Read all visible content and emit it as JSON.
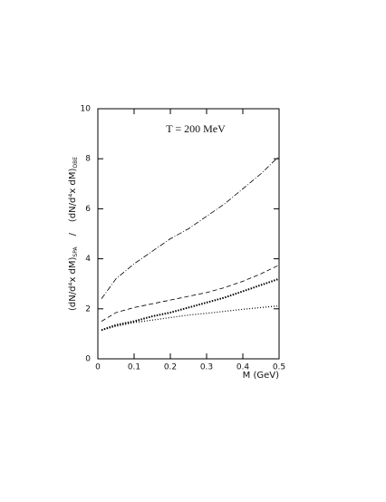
{
  "chart_data": {
    "type": "line",
    "annotation": "T = 200 MeV",
    "x_label": "M (GeV)",
    "y_label": {
      "numerator": "(dN/d⁴x dM)",
      "numerator_sub": "SPA",
      "divider": "/",
      "denominator": "(dN/d⁴x dM)",
      "denominator_sub": "OBE"
    },
    "x": [
      0.01,
      0.05,
      0.1,
      0.15,
      0.2,
      0.25,
      0.3,
      0.35,
      0.4,
      0.45,
      0.5
    ],
    "series": [
      {
        "color": "#000000",
        "dash": "dashdot",
        "values": [
          2.4,
          3.2,
          3.8,
          4.3,
          4.8,
          5.2,
          5.7,
          6.2,
          6.8,
          7.4,
          8.1
        ]
      },
      {
        "color": "#000000",
        "dash": "dashed",
        "values": [
          1.5,
          1.85,
          2.05,
          2.2,
          2.35,
          2.5,
          2.65,
          2.85,
          3.1,
          3.4,
          3.75
        ]
      },
      {
        "color": "#000000",
        "dash": "dotted-thick",
        "values": [
          1.15,
          1.35,
          1.5,
          1.7,
          1.85,
          2.05,
          2.25,
          2.45,
          2.7,
          2.95,
          3.2
        ]
      },
      {
        "color": "#000000",
        "dash": "dotted",
        "values": [
          1.15,
          1.3,
          1.45,
          1.55,
          1.65,
          1.75,
          1.82,
          1.9,
          1.98,
          2.05,
          2.12
        ]
      }
    ],
    "xlim": [
      0,
      0.5
    ],
    "ylim": [
      0,
      10
    ],
    "xticks": [
      0,
      0.1,
      0.2,
      0.3,
      0.4,
      0.5
    ],
    "yticks": [
      0,
      2,
      4,
      6,
      8,
      10
    ],
    "grid": false
  }
}
